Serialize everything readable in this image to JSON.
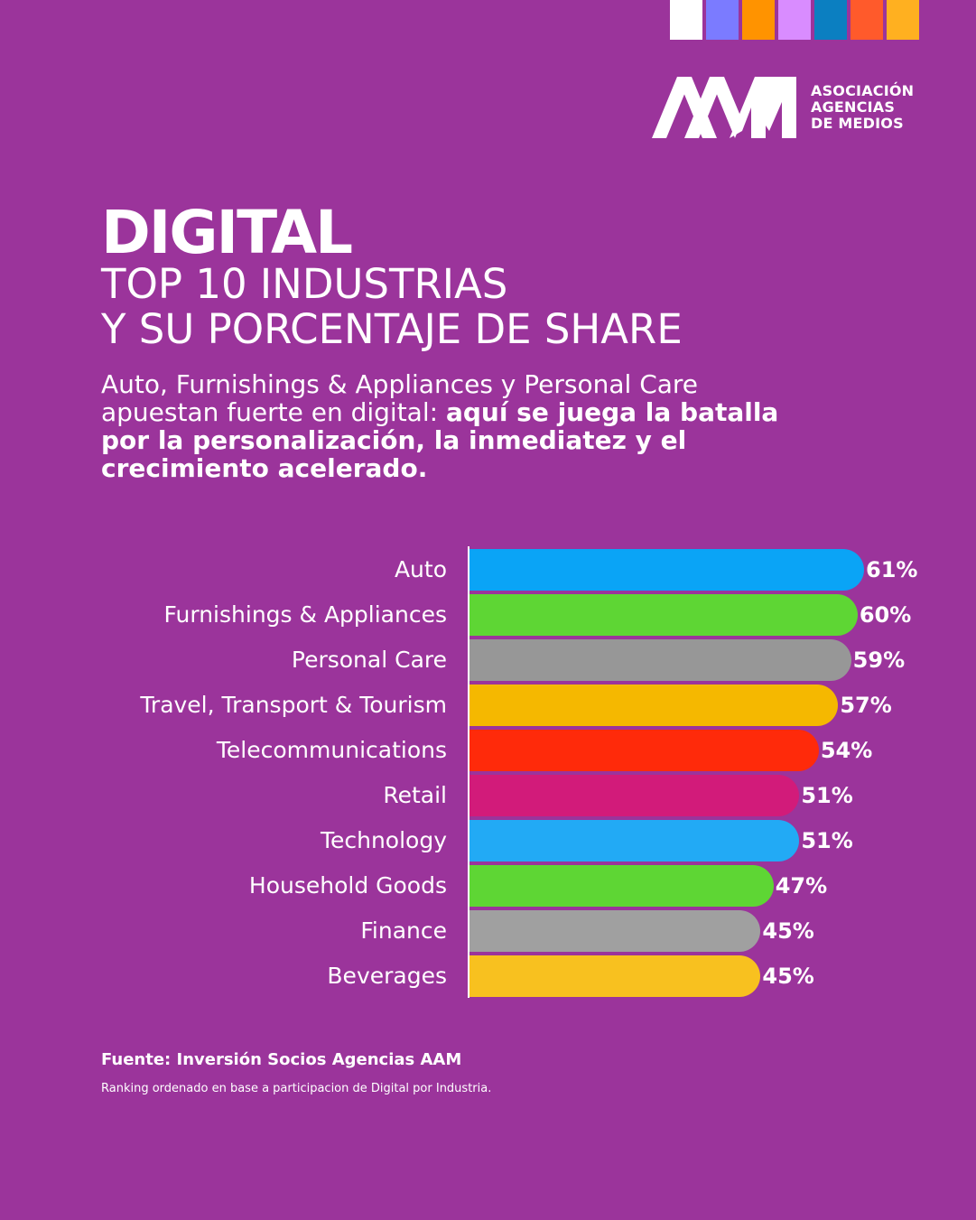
{
  "brand": {
    "swatch_colors": [
      "#ffffff",
      "#7b7bff",
      "#ff9300",
      "#d98cff",
      "#0b7fc1",
      "#ff5a2b",
      "#ffb020"
    ],
    "logo_lines": [
      "ASOCIACIÓN",
      "AGENCIAS",
      "DE MEDIOS"
    ]
  },
  "header": {
    "title": "DIGITAL",
    "subtitle_lines": [
      "TOP 10 INDUSTRIAS",
      "Y SU PORCENTAJE DE SHARE"
    ]
  },
  "description": {
    "regular": "Auto, Furnishings & Appliances y Personal Care apuestan fuerte en digital: ",
    "bold": "aquí se juega la batalla por la personalización, la inmediatez y el crecimiento acelerado."
  },
  "chart_data": {
    "type": "bar",
    "orientation": "horizontal",
    "categories": [
      "Auto",
      "Furnishings & Appliances",
      "Personal Care",
      "Travel, Transport & Tourism",
      "Telecommunications",
      "Retail",
      "Technology",
      "Household Goods",
      "Finance",
      "Beverages"
    ],
    "values": [
      61,
      60,
      59,
      57,
      54,
      51,
      51,
      47,
      45,
      45
    ],
    "value_labels": [
      "61%",
      "60%",
      "59%",
      "57%",
      "54%",
      "51%",
      "51%",
      "47%",
      "45%",
      "45%"
    ],
    "colors": [
      "#0aa4f6",
      "#5ed634",
      "#979797",
      "#f5b800",
      "#ff2a0a",
      "#d21b7a",
      "#22aaf5",
      "#5ed634",
      "#a0a0a0",
      "#f8c11f"
    ],
    "xlim": [
      0,
      100
    ],
    "grid": false
  },
  "footer": {
    "source": "Fuente: Inversión Socios Agencias AAM",
    "note": "Ranking ordenado en base a participacion de Digital por Industria."
  }
}
